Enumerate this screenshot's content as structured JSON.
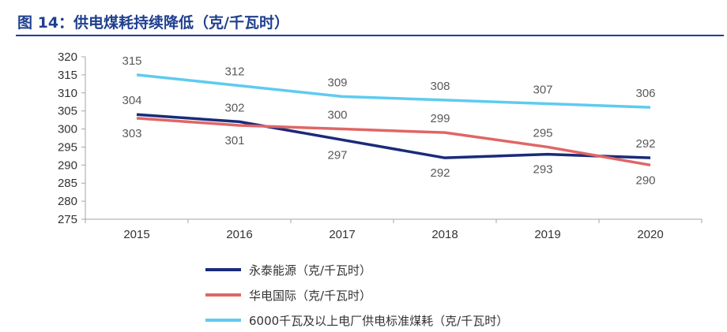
{
  "figure": {
    "title": "图 14：供电煤耗持续降低（克/千瓦时）"
  },
  "chart_data": {
    "type": "line",
    "categories": [
      "2015",
      "2016",
      "2017",
      "2018",
      "2019",
      "2020"
    ],
    "ylim": [
      275,
      320
    ],
    "yticks": [
      "320",
      "315",
      "310",
      "305",
      "300",
      "295",
      "290",
      "285",
      "280",
      "275"
    ],
    "grid": false,
    "legend_position": "bottom",
    "series": [
      {
        "name": "永泰能源（克/千瓦时）",
        "color": "#1a2b7a",
        "values": [
          304,
          302,
          297,
          292,
          293,
          292
        ],
        "labels": [
          "304",
          "302",
          "297",
          "292",
          "293",
          "292"
        ],
        "label_pos": [
          "above",
          "above",
          "below",
          "below",
          "below",
          "above"
        ]
      },
      {
        "name": "华电国际（克/千瓦时）",
        "color": "#e06666",
        "values": [
          303,
          301,
          300,
          299,
          295,
          290
        ],
        "labels": [
          "303",
          "301",
          "300",
          "299",
          "295",
          "290"
        ],
        "label_pos": [
          "below",
          "below",
          "above",
          "above",
          "above",
          "below"
        ]
      },
      {
        "name": "6000千瓦及以上电厂供电标准煤耗（克/千瓦时）",
        "color": "#5ecbf0",
        "values": [
          315,
          312,
          309,
          308,
          307,
          306
        ],
        "labels": [
          "315",
          "312",
          "309",
          "308",
          "307",
          "306"
        ],
        "label_pos": [
          "above",
          "above",
          "above",
          "above",
          "above",
          "above"
        ]
      }
    ]
  }
}
